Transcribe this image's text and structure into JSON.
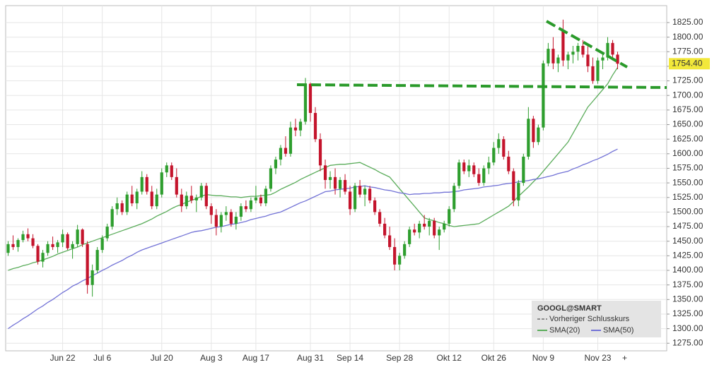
{
  "chart_data": {
    "type": "candlestick",
    "categories": [
      null,
      null,
      null,
      null,
      null,
      null,
      null,
      null,
      null,
      null,
      null,
      "Jun 22",
      null,
      null,
      null,
      null,
      null,
      null,
      null,
      "Jul 6",
      null,
      null,
      null,
      null,
      null,
      null,
      null,
      null,
      null,
      null,
      null,
      "Jul 20",
      null,
      null,
      null,
      null,
      null,
      null,
      null,
      null,
      null,
      "Aug 3",
      null,
      null,
      null,
      null,
      null,
      null,
      null,
      null,
      "Aug 17",
      null,
      null,
      null,
      null,
      null,
      null,
      null,
      null,
      null,
      null,
      "Aug 31",
      null,
      null,
      null,
      null,
      null,
      null,
      null,
      "Sep 14",
      null,
      null,
      null,
      null,
      null,
      null,
      null,
      null,
      null,
      "Sep 28",
      null,
      null,
      null,
      null,
      null,
      null,
      null,
      null,
      null,
      "Okt 12",
      null,
      null,
      null,
      null,
      null,
      null,
      null,
      null,
      "Okt 26",
      null,
      null,
      null,
      null,
      null,
      null,
      null,
      null,
      null,
      "Nov 9",
      null,
      null,
      null,
      null,
      null,
      null,
      null,
      null,
      null,
      null,
      "Nov 23",
      null,
      null,
      null,
      null
    ],
    "open": [
      1430,
      1445,
      1440,
      1452,
      1462,
      1455,
      1442,
      1415,
      1430,
      1445,
      1440,
      1448,
      1462,
      1438,
      1445,
      1470,
      1445,
      1375,
      1400,
      1435,
      1455,
      1475,
      1505,
      1515,
      1500,
      1530,
      1515,
      1535,
      1560,
      1535,
      1510,
      1530,
      1568,
      1580,
      1560,
      1530,
      1510,
      1528,
      1520,
      1525,
      1545,
      1510,
      1495,
      1475,
      1495,
      1500,
      1480,
      1492,
      1510,
      1505,
      1520,
      1525,
      1515,
      1540,
      1575,
      1590,
      1610,
      1600,
      1645,
      1640,
      1655,
      1720,
      1670,
      1625,
      1580,
      1555,
      1560,
      1540,
      1555,
      1535,
      1505,
      1545,
      1530,
      1540,
      1520,
      1500,
      1480,
      1460,
      1440,
      1410,
      1425,
      1445,
      1470,
      1465,
      1480,
      1475,
      1485,
      1460,
      1470,
      1480,
      1505,
      1545,
      1585,
      1570,
      1580,
      1565,
      1550,
      1575,
      1585,
      1610,
      1625,
      1595,
      1570,
      1520,
      1550,
      1595,
      1660,
      1620,
      1645,
      1755,
      1780,
      1755,
      1810,
      1760,
      1770,
      1775,
      1785,
      1770,
      1750,
      1725,
      1760,
      1765,
      1790,
      1770
    ],
    "high": [
      1450,
      1460,
      1455,
      1468,
      1472,
      1462,
      1445,
      1435,
      1450,
      1458,
      1452,
      1470,
      1465,
      1450,
      1478,
      1472,
      1450,
      1410,
      1440,
      1460,
      1480,
      1510,
      1525,
      1520,
      1535,
      1545,
      1540,
      1570,
      1565,
      1545,
      1540,
      1575,
      1585,
      1585,
      1575,
      1540,
      1535,
      1545,
      1530,
      1550,
      1550,
      1515,
      1505,
      1500,
      1510,
      1505,
      1500,
      1515,
      1520,
      1525,
      1545,
      1530,
      1545,
      1580,
      1595,
      1615,
      1630,
      1655,
      1660,
      1660,
      1730,
      1722,
      1680,
      1635,
      1590,
      1570,
      1575,
      1560,
      1565,
      1545,
      1550,
      1555,
      1545,
      1545,
      1525,
      1505,
      1490,
      1475,
      1455,
      1430,
      1450,
      1475,
      1480,
      1485,
      1495,
      1490,
      1490,
      1475,
      1485,
      1510,
      1550,
      1590,
      1590,
      1590,
      1585,
      1575,
      1580,
      1595,
      1620,
      1635,
      1630,
      1605,
      1575,
      1555,
      1600,
      1680,
      1665,
      1650,
      1760,
      1790,
      1800,
      1770,
      1830,
      1775,
      1785,
      1790,
      1795,
      1785,
      1765,
      1765,
      1775,
      1800,
      1795,
      1775
    ],
    "low": [
      1425,
      1435,
      1432,
      1448,
      1450,
      1438,
      1410,
      1405,
      1425,
      1435,
      1430,
      1440,
      1435,
      1420,
      1440,
      1440,
      1360,
      1355,
      1395,
      1430,
      1450,
      1470,
      1495,
      1495,
      1495,
      1510,
      1505,
      1530,
      1530,
      1505,
      1505,
      1525,
      1560,
      1555,
      1525,
      1500,
      1505,
      1515,
      1500,
      1520,
      1505,
      1480,
      1460,
      1465,
      1485,
      1475,
      1470,
      1485,
      1500,
      1500,
      1515,
      1510,
      1510,
      1535,
      1565,
      1580,
      1595,
      1595,
      1630,
      1630,
      1650,
      1655,
      1620,
      1570,
      1540,
      1540,
      1530,
      1525,
      1530,
      1495,
      1500,
      1525,
      1510,
      1515,
      1495,
      1475,
      1455,
      1435,
      1400,
      1400,
      1420,
      1440,
      1460,
      1455,
      1470,
      1460,
      1455,
      1435,
      1465,
      1475,
      1500,
      1540,
      1565,
      1560,
      1560,
      1545,
      1545,
      1565,
      1580,
      1600,
      1590,
      1565,
      1510,
      1510,
      1545,
      1590,
      1610,
      1615,
      1640,
      1750,
      1745,
      1740,
      1750,
      1745,
      1755,
      1760,
      1765,
      1740,
      1720,
      1720,
      1745,
      1760,
      1760,
      1745
    ],
    "close": [
      1445,
      1440,
      1452,
      1462,
      1455,
      1442,
      1415,
      1430,
      1445,
      1440,
      1448,
      1462,
      1438,
      1445,
      1470,
      1445,
      1375,
      1400,
      1435,
      1455,
      1475,
      1505,
      1515,
      1500,
      1530,
      1515,
      1535,
      1560,
      1535,
      1510,
      1530,
      1568,
      1580,
      1560,
      1530,
      1510,
      1528,
      1520,
      1525,
      1545,
      1510,
      1495,
      1475,
      1495,
      1500,
      1480,
      1492,
      1510,
      1505,
      1520,
      1525,
      1515,
      1540,
      1575,
      1590,
      1610,
      1600,
      1645,
      1640,
      1655,
      1720,
      1670,
      1625,
      1580,
      1555,
      1560,
      1540,
      1555,
      1535,
      1505,
      1545,
      1530,
      1540,
      1520,
      1500,
      1480,
      1460,
      1440,
      1410,
      1425,
      1445,
      1470,
      1465,
      1480,
      1475,
      1485,
      1460,
      1470,
      1480,
      1505,
      1545,
      1585,
      1570,
      1580,
      1565,
      1550,
      1575,
      1585,
      1610,
      1625,
      1595,
      1570,
      1520,
      1550,
      1595,
      1660,
      1620,
      1645,
      1755,
      1780,
      1755,
      1765,
      1760,
      1770,
      1775,
      1785,
      1770,
      1750,
      1725,
      1760,
      1765,
      1790,
      1770,
      1754.4
    ],
    "up_color": "#2e9e2e",
    "down_color": "#c4142c",
    "series": [
      {
        "name": "SMA(20)",
        "color": "#5aac5a",
        "values": [
          1400,
          1403,
          1405,
          1408,
          1410,
          1413,
          1415,
          1418,
          1421,
          1424,
          1428,
          1431,
          1434,
          1437,
          1440,
          1444,
          1447,
          1450,
          1453,
          1456,
          1459,
          1462,
          1465,
          1468,
          1471,
          1474,
          1477,
          1480,
          1484,
          1488,
          1493,
          1497,
          1501,
          1506,
          1510,
          1513,
          1517,
          1520,
          1523,
          1527,
          1530,
          1529,
          1528,
          1528,
          1527,
          1526,
          1526,
          1525,
          1526,
          1527,
          1527,
          1528,
          1529,
          1530,
          1534,
          1539,
          1543,
          1547,
          1551,
          1556,
          1560,
          1564,
          1568,
          1572,
          1576,
          1580,
          1581,
          1582,
          1582,
          1583,
          1584,
          1585,
          1581,
          1577,
          1573,
          1568,
          1564,
          1560,
          1550,
          1540,
          1530,
          1520,
          1510,
          1500,
          1490,
          1487,
          1485,
          1482,
          1480,
          1477,
          1475,
          1476,
          1477,
          1478,
          1479,
          1480,
          1485,
          1490,
          1495,
          1500,
          1505,
          1510,
          1518,
          1527,
          1535,
          1543,
          1552,
          1560,
          1570,
          1580,
          1590,
          1600,
          1610,
          1620,
          1635,
          1650,
          1665,
          1680,
          1690,
          1700,
          1710,
          1720,
          1735,
          1748
        ]
      },
      {
        "name": "SMA(50)",
        "color": "#7272d6",
        "values": [
          1300,
          1306,
          1311,
          1317,
          1322,
          1328,
          1334,
          1339,
          1345,
          1350,
          1356,
          1362,
          1367,
          1373,
          1377,
          1382,
          1386,
          1391,
          1395,
          1400,
          1404,
          1409,
          1413,
          1417,
          1422,
          1426,
          1431,
          1435,
          1438,
          1441,
          1444,
          1447,
          1450,
          1453,
          1456,
          1459,
          1462,
          1465,
          1467,
          1468,
          1470,
          1472,
          1474,
          1475,
          1477,
          1479,
          1480,
          1482,
          1484,
          1487,
          1489,
          1491,
          1493,
          1496,
          1498,
          1500,
          1504,
          1508,
          1512,
          1516,
          1519,
          1523,
          1527,
          1531,
          1535,
          1536,
          1538,
          1539,
          1540,
          1541,
          1543,
          1544,
          1545,
          1543,
          1542,
          1540,
          1538,
          1537,
          1535,
          1533,
          1532,
          1530,
          1531,
          1531,
          1532,
          1532,
          1533,
          1533,
          1534,
          1534,
          1535,
          1536,
          1538,
          1539,
          1540,
          1541,
          1543,
          1544,
          1545,
          1546,
          1548,
          1549,
          1550,
          1552,
          1553,
          1554,
          1556,
          1557,
          1559,
          1561,
          1563,
          1566,
          1568,
          1570,
          1574,
          1577,
          1581,
          1584,
          1588,
          1591,
          1595,
          1599,
          1604,
          1608
        ]
      }
    ],
    "last_price": {
      "value": 1754.4,
      "label": "1754.40"
    },
    "legend_title": "GOOGL@SMART",
    "previous_close_label": "Vorheriger Schlusskurs",
    "ylim": [
      1262,
      1854
    ],
    "yticks": [
      {
        "value": 1275,
        "label": "1275.00"
      },
      {
        "value": 1300,
        "label": "1300.00"
      },
      {
        "value": 1325,
        "label": "1325.00"
      },
      {
        "value": 1350,
        "label": "1350.00"
      },
      {
        "value": 1375,
        "label": "1375.00"
      },
      {
        "value": 1400,
        "label": "1400.00"
      },
      {
        "value": 1425,
        "label": "1425.00"
      },
      {
        "value": 1450,
        "label": "1450.00"
      },
      {
        "value": 1475,
        "label": "1475.00"
      },
      {
        "value": 1500,
        "label": "1500.00"
      },
      {
        "value": 1525,
        "label": "1525.00"
      },
      {
        "value": 1550,
        "label": "1550.00"
      },
      {
        "value": 1575,
        "label": "1575.00"
      },
      {
        "value": 1600,
        "label": "1600.00"
      },
      {
        "value": 1625,
        "label": "1625.00"
      },
      {
        "value": 1650,
        "label": "1650.00"
      },
      {
        "value": 1675,
        "label": "1675.00"
      },
      {
        "value": 1700,
        "label": "1700.00"
      },
      {
        "value": 1725,
        "label": "1725.00"
      },
      {
        "value": 1750,
        "label": "1750.00"
      },
      {
        "value": 1775,
        "label": "1775.00"
      },
      {
        "value": 1800,
        "label": "1800.00"
      },
      {
        "value": 1825,
        "label": "1825.00"
      }
    ],
    "grid": true
  }
}
